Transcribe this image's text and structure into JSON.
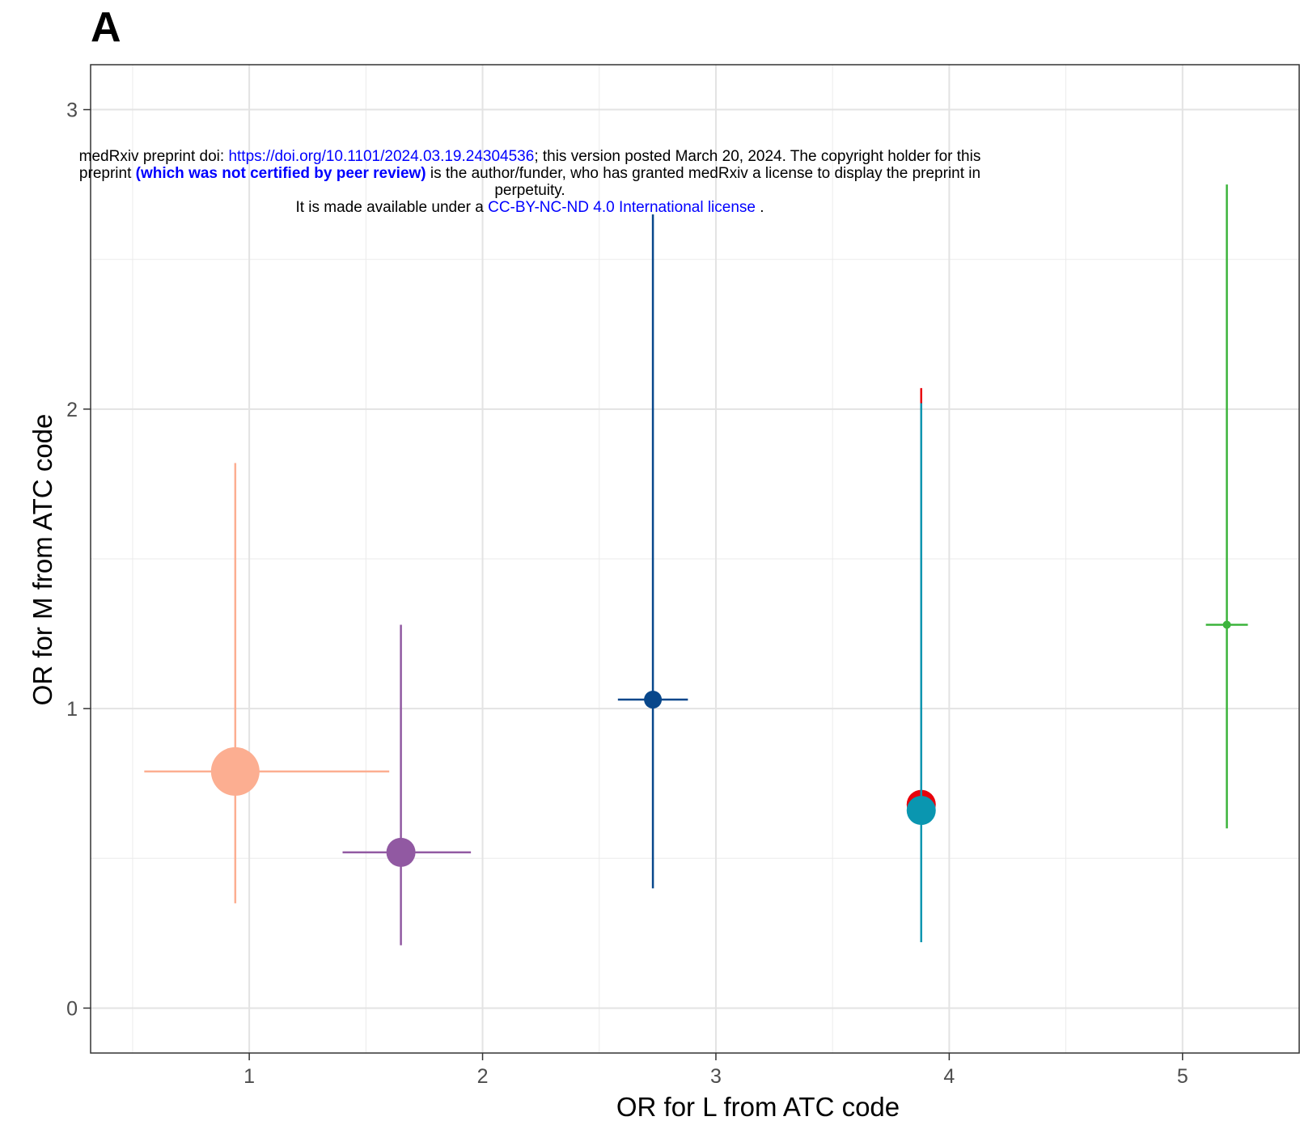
{
  "panel_label": "A",
  "banner": {
    "line1_prefix": "medRxiv preprint doi: ",
    "doi_link": "https://doi.org/10.1101/2024.03.19.24304536",
    "line1_suffix": "; this version posted March 20, 2024. The copyright holder for this",
    "line2_prefix": "preprint ",
    "line2_bold": "(which was not certified by peer review)",
    "line2_suffix": " is the author/funder, who has granted medRxiv a license to display the preprint in",
    "line3": "perpetuity.",
    "line4_prefix": "It is made available under a ",
    "license_link": "CC-BY-NC-ND 4.0 International license",
    "line4_suffix": " ."
  },
  "chart_data": {
    "type": "scatter",
    "xlabel": "OR for L from ATC code",
    "ylabel": "OR for M from ATC code",
    "xlim": [
      0.32,
      5.5
    ],
    "ylim": [
      -0.15,
      3.15
    ],
    "xticks": [
      1,
      2,
      3,
      4,
      5
    ],
    "yticks": [
      0,
      1,
      2,
      3
    ],
    "grid": true,
    "legend": "none",
    "points": [
      {
        "x": 0.94,
        "y": 0.79,
        "xlo": 0.55,
        "xhi": 1.6,
        "ylo": 0.35,
        "yhi": 1.82,
        "size": 30,
        "color": "#fcae91"
      },
      {
        "x": 1.65,
        "y": 0.52,
        "xlo": 1.4,
        "xhi": 1.95,
        "ylo": 0.21,
        "yhi": 1.28,
        "size": 18,
        "color": "#9159a2"
      },
      {
        "x": 2.73,
        "y": 1.03,
        "xlo": 2.58,
        "xhi": 2.88,
        "ylo": 0.4,
        "yhi": 2.65,
        "size": 11,
        "color": "#08478b"
      },
      {
        "x": 3.88,
        "y": 0.68,
        "xlo": 3.88,
        "xhi": 3.88,
        "ylo": 0.66,
        "yhi": 2.07,
        "size": 18,
        "color": "#e8000b"
      },
      {
        "x": 3.88,
        "y": 0.66,
        "xlo": 3.88,
        "xhi": 3.88,
        "ylo": 0.22,
        "yhi": 2.02,
        "size": 18,
        "color": "#0a96b0"
      },
      {
        "x": 5.19,
        "y": 1.28,
        "xlo": 5.1,
        "xhi": 5.28,
        "ylo": 0.6,
        "yhi": 2.75,
        "size": 5,
        "color": "#3cb43c"
      }
    ]
  }
}
